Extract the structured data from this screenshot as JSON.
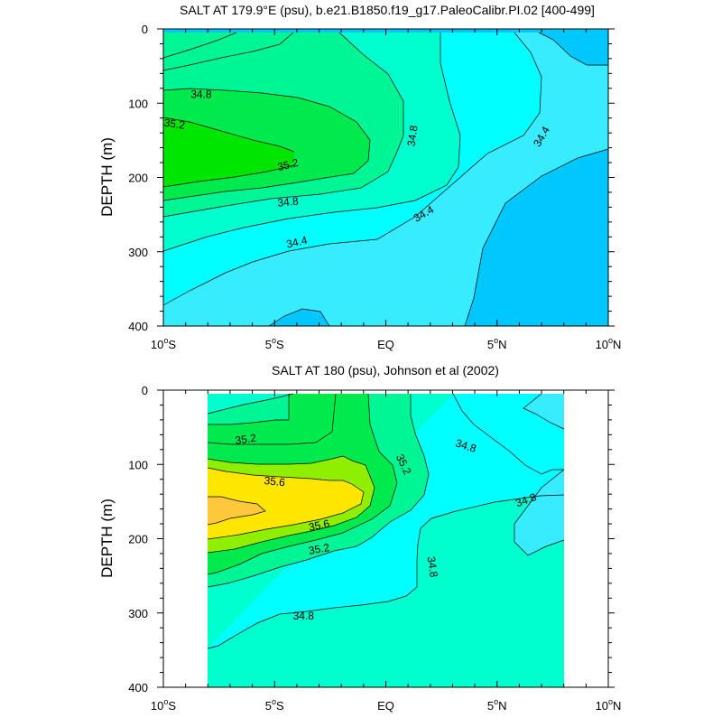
{
  "chart_data": [
    {
      "type": "contour",
      "title": "SALT AT 179.9°E (psu), b.e21.B1850.f19_g17.PaleoCalibr.PI.02 [400-499]",
      "ylabel": "DEPTH (m)",
      "xlim": [
        -10,
        10
      ],
      "ylim": [
        400,
        0
      ],
      "y_inverted": true,
      "x_ticks": [
        {
          "value": -10,
          "num": "10",
          "sup": "o",
          "hemi": "S"
        },
        {
          "value": -5,
          "num": "5",
          "sup": "o",
          "hemi": "S"
        },
        {
          "value": 0,
          "num": "EQ",
          "sup": "",
          "hemi": ""
        },
        {
          "value": 5,
          "num": "5",
          "sup": "o",
          "hemi": "N"
        },
        {
          "value": 10,
          "num": "10",
          "sup": "o",
          "hemi": "N"
        }
      ],
      "y_ticks": [
        "0",
        "100",
        "200",
        "300",
        "400"
      ],
      "contour_levels": [
        34.0,
        34.2,
        34.4,
        34.6,
        34.8,
        35.0,
        35.2,
        35.4
      ],
      "colors": {
        "lt34.2": "#00c8ff",
        "34.2-34.4": "#38ecff",
        "34.4-34.6": "#00ffff",
        "34.6-34.8": "#00ffce",
        "34.8-35.0": "#00f595",
        "35.0-35.2": "#00ea4e",
        "gt35.2": "#00e600"
      },
      "contour_labels": [
        {
          "text": "34.8",
          "lat": -8.3,
          "depth": 88,
          "angle": 0
        },
        {
          "text": "35.2",
          "lat": -9.5,
          "depth": 128,
          "angle": 8
        },
        {
          "text": "35.2",
          "lat": -4.4,
          "depth": 183,
          "angle": -14
        },
        {
          "text": "34.8",
          "lat": -4.4,
          "depth": 233,
          "angle": -6
        },
        {
          "text": "34.4",
          "lat": -4.0,
          "depth": 287,
          "angle": -13
        },
        {
          "text": "34.8",
          "lat": 1.2,
          "depth": 144,
          "angle": -82
        },
        {
          "text": "34.4",
          "lat": 1.7,
          "depth": 249,
          "angle": -30
        },
        {
          "text": "34.4",
          "lat": 7.0,
          "depth": 145,
          "angle": -60
        }
      ]
    },
    {
      "type": "contour",
      "title": "SALT AT 180 (psu), Johnson et al (2002)",
      "ylabel": "DEPTH (m)",
      "xlim": [
        -10,
        10
      ],
      "ylim": [
        400,
        0
      ],
      "y_inverted": true,
      "data_extent_lat": [
        -8,
        8
      ],
      "data_extent_depth": [
        5,
        400
      ],
      "x_ticks": [
        {
          "value": -10,
          "num": "10",
          "sup": "o",
          "hemi": "S"
        },
        {
          "value": -5,
          "num": "5",
          "sup": "o",
          "hemi": "S"
        },
        {
          "value": 0,
          "num": "EQ",
          "sup": "",
          "hemi": ""
        },
        {
          "value": 5,
          "num": "5",
          "sup": "o",
          "hemi": "N"
        },
        {
          "value": 10,
          "num": "10",
          "sup": "o",
          "hemi": "N"
        }
      ],
      "y_ticks": [
        "0",
        "100",
        "200",
        "300",
        "400"
      ],
      "contour_levels": [
        34.6,
        34.8,
        35.0,
        35.2,
        35.4,
        35.6,
        35.8
      ],
      "colors": {
        "lt34.6": "#38ecff",
        "34.6-34.8": "#00ffff",
        "34.8-35.0": "#00ffce",
        "35.0-35.2": "#00f595",
        "35.2-35.4": "#00ea4e",
        "35.4-35.6": "#90ee00",
        "35.6-35.8": "#ffe600",
        "gt35.8": "#ffc83c"
      },
      "contour_labels": [
        {
          "text": "35.2",
          "lat": -6.3,
          "depth": 66,
          "angle": -8
        },
        {
          "text": "35.6",
          "lat": -5.0,
          "depth": 123,
          "angle": 6
        },
        {
          "text": "35.6",
          "lat": -3.0,
          "depth": 182,
          "angle": -12
        },
        {
          "text": "35.2",
          "lat": -3.0,
          "depth": 214,
          "angle": -10
        },
        {
          "text": "35.2",
          "lat": 0.8,
          "depth": 100,
          "angle": 65
        },
        {
          "text": "34.8",
          "lat": 3.6,
          "depth": 75,
          "angle": 18
        },
        {
          "text": "34.8",
          "lat": 6.3,
          "depth": 148,
          "angle": -20
        },
        {
          "text": "34.8",
          "lat": 2.1,
          "depth": 238,
          "angle": 82
        },
        {
          "text": "34.8",
          "lat": -3.7,
          "depth": 304,
          "angle": 0
        }
      ]
    }
  ]
}
